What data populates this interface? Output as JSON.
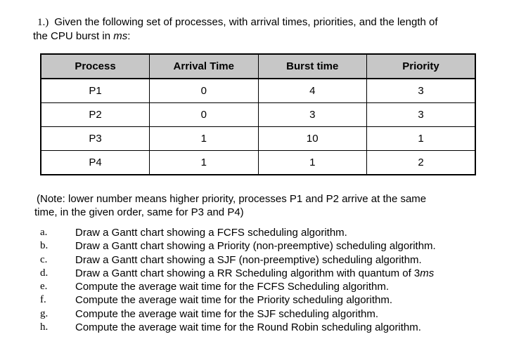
{
  "page": {
    "background": "#ffffff",
    "text_color": "#000000"
  },
  "heading": {
    "number": "1.)",
    "line1": "Given the following set of processes, with arrival times, priorities, and the length of",
    "line2_prefix": "the CPU burst in ",
    "line2_italic": "ms",
    "line2_suffix": ":"
  },
  "process_table": {
    "header_bg": "#c7c7c7",
    "border_color": "#000000",
    "headers": [
      "Process",
      "Arrival Time",
      "Burst time",
      "Priority"
    ],
    "rows": [
      [
        "P1",
        "0",
        "4",
        "3"
      ],
      [
        "P2",
        "0",
        "3",
        "3"
      ],
      [
        "P3",
        "1",
        "10",
        "1"
      ],
      [
        "P4",
        "1",
        "1",
        "2"
      ]
    ]
  },
  "note": {
    "line1": "(Note: lower number means higher priority, processes P1 and P2 arrive at the same",
    "line2": "time, in the given order, same for P3 and P4)"
  },
  "questions": [
    {
      "marker": "a.",
      "text": "Draw a Gantt chart showing a FCFS scheduling algorithm.",
      "italic": ""
    },
    {
      "marker": "b.",
      "text": "Draw a Gantt chart showing a Priority (non-preemptive) scheduling algorithm.",
      "italic": ""
    },
    {
      "marker": "c.",
      "text": "Draw a Gantt chart showing a SJF (non-preemptive) scheduling algorithm.",
      "italic": ""
    },
    {
      "marker": "d.",
      "text": "Draw a Gantt chart showing a RR Scheduling algorithm with quantum of 3",
      "italic": "ms"
    },
    {
      "marker": "e.",
      "text": "Compute the average wait time for the FCFS Scheduling algorithm.",
      "italic": ""
    },
    {
      "marker": "f.",
      "text": "Compute the average wait time for the Priority scheduling algorithm.",
      "italic": ""
    },
    {
      "marker": "g.",
      "text": "Compute the average wait time for the SJF scheduling algorithm.",
      "italic": ""
    },
    {
      "marker": "h.",
      "text": "Compute the average wait time for the Round Robin scheduling algorithm.",
      "italic": ""
    }
  ]
}
